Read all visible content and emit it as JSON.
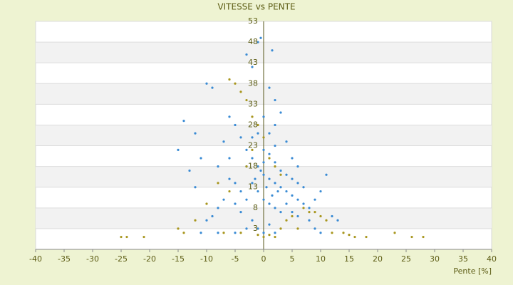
{
  "chart_data": {
    "type": "scatter",
    "title": "VITESSE vs PENTE",
    "x_label": "Pente [%]",
    "xlim": [
      -40,
      40
    ],
    "xticks": [
      -40,
      -35,
      -30,
      -25,
      -20,
      -15,
      -10,
      -5,
      0,
      5,
      10,
      15,
      20,
      25,
      30,
      35,
      40
    ],
    "ylim": [
      -2,
      53
    ],
    "yticks": [
      3,
      8,
      13,
      18,
      23,
      28,
      33,
      38,
      43,
      48,
      53
    ],
    "grid": true,
    "series": [
      {
        "color": "#3a8bd4",
        "x": [
          -1,
          -0.5,
          1.5,
          -3,
          -10,
          -9,
          -2,
          1,
          2,
          -14,
          -12,
          -15,
          -11,
          -8,
          -7,
          -6,
          -5,
          -4,
          -3,
          -2,
          -1,
          0,
          1,
          2,
          3,
          4,
          5,
          6,
          7,
          8,
          9,
          10,
          11,
          12,
          13,
          -2,
          -1,
          0,
          1,
          2,
          3,
          -3,
          -4,
          -5,
          -6,
          -7,
          -8,
          -9,
          -10,
          -12,
          -13,
          0,
          1,
          2,
          3,
          4,
          5,
          6,
          -1,
          0,
          2,
          3,
          4,
          5,
          6,
          7,
          -2,
          -1,
          0,
          1,
          2,
          8,
          9,
          10,
          -3,
          -5,
          -8,
          -11,
          0.5,
          1.5,
          2.5,
          -0.5,
          -1.5,
          0,
          1,
          2,
          -2,
          -3,
          4,
          5,
          6,
          -4,
          -6,
          -5
        ],
        "values": [
          48,
          49,
          46,
          45,
          38,
          37,
          42,
          37,
          34,
          29,
          26,
          22,
          20,
          18,
          24,
          30,
          28,
          25,
          22,
          20,
          18,
          16,
          15,
          14,
          13,
          12,
          11,
          10,
          9,
          8,
          10,
          12,
          16,
          6,
          5,
          14,
          12,
          10,
          9,
          8,
          7,
          10,
          12,
          14,
          15,
          10,
          8,
          6,
          5,
          13,
          17,
          22,
          26,
          28,
          31,
          24,
          20,
          18,
          26,
          30,
          19,
          17,
          16,
          15,
          14,
          13,
          5,
          3,
          2,
          4,
          2,
          5,
          3,
          2,
          3,
          2,
          2,
          2,
          13,
          11,
          12,
          17,
          15,
          19,
          21,
          23,
          25,
          18,
          9,
          7,
          6,
          7,
          20,
          9
        ]
      },
      {
        "color": "#a8961e",
        "x": [
          -25,
          -24,
          -21,
          -14,
          -12,
          -10,
          -6,
          -5,
          -4,
          -3,
          -2,
          -1,
          0,
          -2,
          -3,
          1,
          2,
          3,
          -1,
          0,
          1,
          2,
          3,
          4,
          5,
          7,
          8,
          9,
          10,
          11,
          12,
          14,
          15,
          16,
          18,
          23,
          26,
          28,
          -15,
          -7,
          -4,
          6,
          -6,
          -8
        ],
        "values": [
          1,
          1,
          1,
          2,
          5,
          9,
          39,
          38,
          36,
          34,
          30,
          28,
          25,
          22,
          18,
          20,
          18,
          16,
          1.5,
          1,
          1.5,
          1,
          3,
          5,
          6,
          8,
          7,
          7,
          6,
          5,
          2,
          2,
          1.5,
          1,
          1,
          2,
          1,
          1,
          3,
          2,
          2,
          3,
          12,
          14
        ]
      }
    ]
  }
}
